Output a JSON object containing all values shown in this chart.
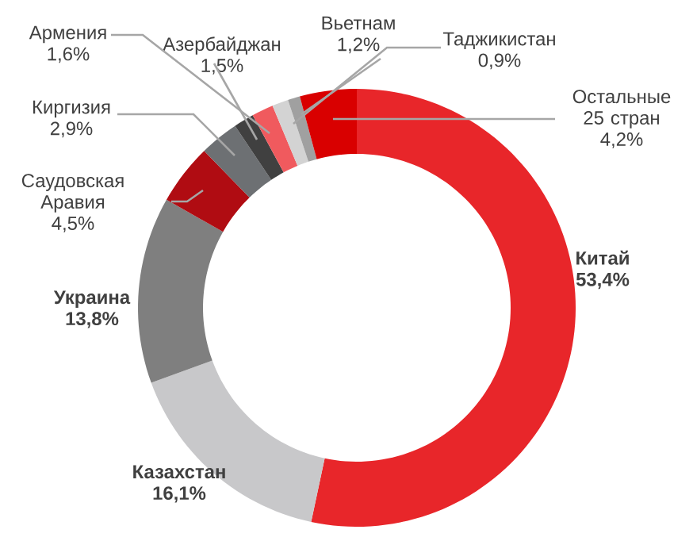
{
  "chart_data": {
    "type": "donut",
    "categories": [
      "Китай",
      "Казахстан",
      "Украина",
      "Саудовская Аравия",
      "Киргизия",
      "Азербайджан",
      "Армения",
      "Вьетнам",
      "Таджикистан",
      "Остальные 25 стран"
    ],
    "values": [
      53.4,
      16.1,
      13.8,
      4.5,
      2.9,
      1.5,
      1.6,
      1.2,
      0.9,
      4.2
    ],
    "value_labels": [
      "53,4%",
      "16,1%",
      "13,8%",
      "4,5%",
      "2,9%",
      "1,5%",
      "1,6%",
      "1,2%",
      "0,9%",
      "4,2%"
    ],
    "colors": [
      "#e8262a",
      "#c8c8ca",
      "#7f7f7f",
      "#b00c12",
      "#6d7073",
      "#404040",
      "#f05a5e",
      "#d3d3d3",
      "#a0a0a0",
      "#d90000"
    ]
  }
}
